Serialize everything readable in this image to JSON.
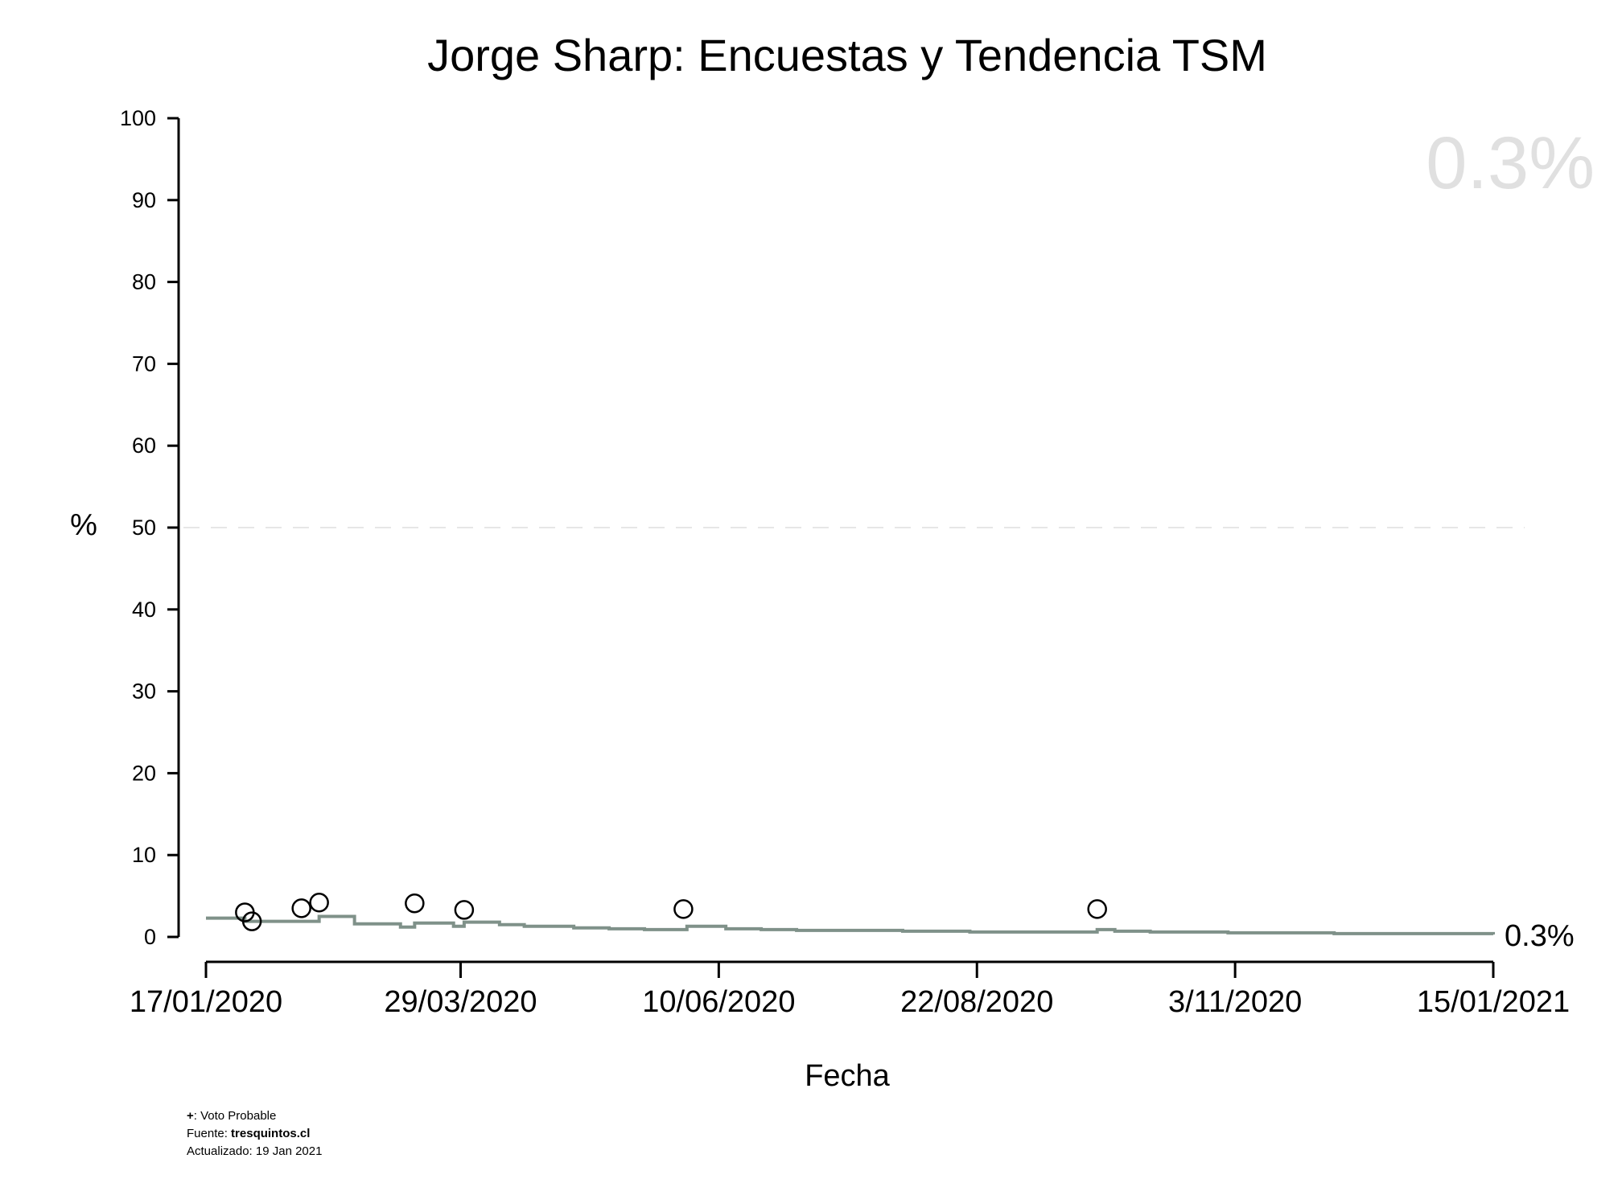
{
  "chart_data": {
    "type": "line",
    "title": "Jorge Sharp: Encuestas y Tendencia TSM",
    "xlabel": "Fecha",
    "ylabel": "%",
    "ylim": [
      0,
      100
    ],
    "yticks": [
      0,
      10,
      20,
      30,
      40,
      50,
      60,
      70,
      80,
      90,
      100
    ],
    "xlim": [
      "2020-01-17",
      "2021-01-15"
    ],
    "xticks": [
      {
        "date": "2020-01-17",
        "label": "17/01/2020"
      },
      {
        "date": "2020-03-29",
        "label": "29/03/2020"
      },
      {
        "date": "2020-06-10",
        "label": "10/06/2020"
      },
      {
        "date": "2020-08-22",
        "label": "22/08/2020"
      },
      {
        "date": "2020-11-03",
        "label": "3/11/2020"
      },
      {
        "date": "2021-01-15",
        "label": "15/01/2021"
      }
    ],
    "reference_line": {
      "y": 50,
      "style": "dashed"
    },
    "current_value_label": "0.3%",
    "watermark_value": "0.3%",
    "grid": false,
    "series": [
      {
        "kind": "polls",
        "marker": "open-circle",
        "points": [
          {
            "x": "2020-01-28",
            "y": 3.0
          },
          {
            "x": "2020-01-30",
            "y": 1.9
          },
          {
            "x": "2020-02-13",
            "y": 3.5
          },
          {
            "x": "2020-02-18",
            "y": 4.2
          },
          {
            "x": "2020-03-16",
            "y": 4.1
          },
          {
            "x": "2020-03-30",
            "y": 3.3
          },
          {
            "x": "2020-05-31",
            "y": 3.4
          },
          {
            "x": "2020-09-25",
            "y": 3.4
          }
        ]
      },
      {
        "kind": "trend",
        "color": "#7f9189",
        "step": true,
        "points": [
          {
            "x": "2020-01-17",
            "y": 2.3
          },
          {
            "x": "2020-01-28",
            "y": 1.9
          },
          {
            "x": "2020-02-14",
            "y": 1.9
          },
          {
            "x": "2020-02-18",
            "y": 2.5
          },
          {
            "x": "2020-02-28",
            "y": 1.6
          },
          {
            "x": "2020-03-12",
            "y": 1.2
          },
          {
            "x": "2020-03-16",
            "y": 1.7
          },
          {
            "x": "2020-03-27",
            "y": 1.3
          },
          {
            "x": "2020-03-30",
            "y": 1.8
          },
          {
            "x": "2020-04-09",
            "y": 1.5
          },
          {
            "x": "2020-04-16",
            "y": 1.3
          },
          {
            "x": "2020-04-30",
            "y": 1.1
          },
          {
            "x": "2020-05-10",
            "y": 1.0
          },
          {
            "x": "2020-05-20",
            "y": 0.9
          },
          {
            "x": "2020-06-01",
            "y": 1.3
          },
          {
            "x": "2020-06-12",
            "y": 1.0
          },
          {
            "x": "2020-06-22",
            "y": 0.9
          },
          {
            "x": "2020-07-02",
            "y": 0.8
          },
          {
            "x": "2020-08-01",
            "y": 0.7
          },
          {
            "x": "2020-08-20",
            "y": 0.6
          },
          {
            "x": "2020-09-10",
            "y": 0.6
          },
          {
            "x": "2020-09-25",
            "y": 0.9
          },
          {
            "x": "2020-09-30",
            "y": 0.7
          },
          {
            "x": "2020-10-10",
            "y": 0.6
          },
          {
            "x": "2020-11-01",
            "y": 0.5
          },
          {
            "x": "2020-12-01",
            "y": 0.4
          },
          {
            "x": "2021-01-15",
            "y": 0.3
          }
        ]
      }
    ]
  },
  "footnotes": {
    "legend_symbol": "+",
    "legend_text": ": Voto Probable",
    "source_prefix": "Fuente: ",
    "source_name": "tresquintos.cl",
    "updated": "Actualizado: 19 Jan 2021"
  }
}
